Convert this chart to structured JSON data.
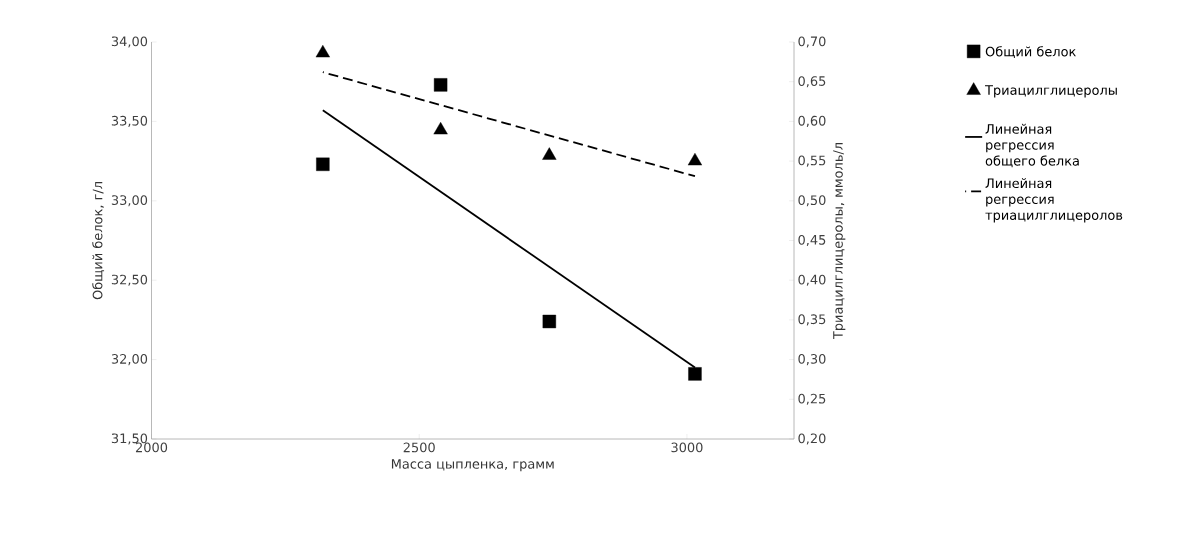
{
  "chart_data": {
    "type": "scatter",
    "xlabel": "Масса цыпленка, грамм",
    "ylabel": "Общий белок, г/л",
    "y2label": "Триацилглицеролы, ммоль/л",
    "xlim": [
      2000,
      3200
    ],
    "xticks": [
      2000,
      2500,
      3000
    ],
    "ylim": [
      31.5,
      34
    ],
    "yticks": [
      {
        "value": 31.5,
        "label": "31,50"
      },
      {
        "value": 32,
        "label": "32,00"
      },
      {
        "value": 32.5,
        "label": "32,50"
      },
      {
        "value": 33,
        "label": "33,00"
      },
      {
        "value": 33.5,
        "label": "33,50"
      },
      {
        "value": 34,
        "label": "34,00"
      }
    ],
    "y2lim": [
      0.2,
      0.7
    ],
    "y2ticks": [
      {
        "value": 0.2,
        "label": "0,20"
      },
      {
        "value": 0.25,
        "label": "0,25"
      },
      {
        "value": 0.3,
        "label": "0,30"
      },
      {
        "value": 0.35,
        "label": "0,35"
      },
      {
        "value": 0.4,
        "label": "0,40"
      },
      {
        "value": 0.45,
        "label": "0,45"
      },
      {
        "value": 0.5,
        "label": "0,50"
      },
      {
        "value": 0.55,
        "label": "0,55"
      },
      {
        "value": 0.6,
        "label": "0,60"
      },
      {
        "value": 0.65,
        "label": "0,65"
      },
      {
        "value": 0.7,
        "label": "0,70"
      }
    ],
    "legend": "right",
    "series": [
      {
        "name": "Общий белок",
        "type": "scatter",
        "marker": "square",
        "color": "#000000",
        "x": [
          2320,
          2540,
          2743,
          3015
        ],
        "values": [
          33.23,
          33.73,
          32.24,
          31.91
        ]
      },
      {
        "name": "Триацилглицеролы",
        "type": "scatter",
        "marker": "triangle",
        "axis": "y2",
        "color": "#000000",
        "x": [
          2320,
          2540,
          2743,
          3015
        ],
        "values": [
          0.686,
          0.589,
          0.557,
          0.55
        ]
      },
      {
        "name": "Линейная регрессия общего белка",
        "type": "line",
        "line_style": "solid",
        "color": "#000000",
        "x": [
          2320,
          3015
        ],
        "values": [
          33.57,
          31.95
        ]
      },
      {
        "name": "Линейная регрессия триацилглицеролов",
        "type": "line",
        "line_style": "dashed",
        "axis": "y2",
        "color": "#000000",
        "x": [
          2320,
          3015
        ],
        "values": [
          0.662,
          0.531
        ]
      }
    ]
  }
}
